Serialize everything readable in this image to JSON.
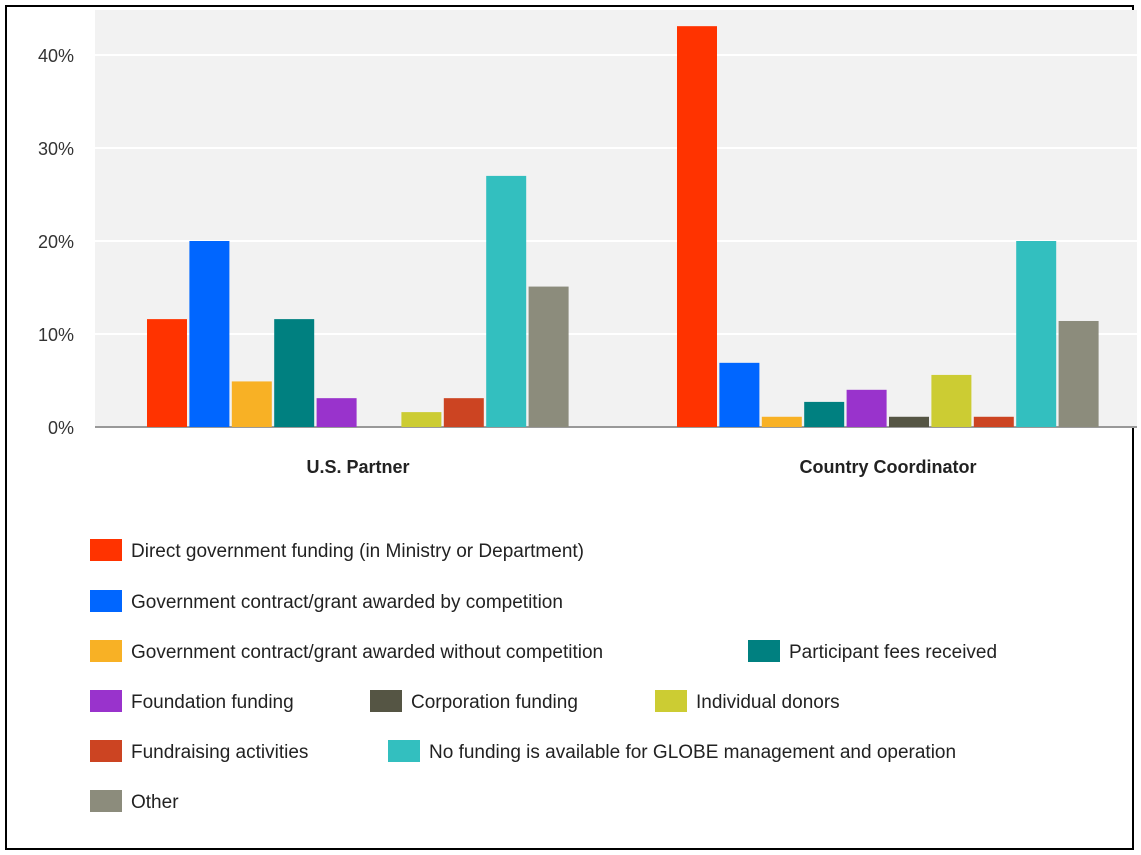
{
  "chart_data": {
    "type": "bar",
    "title": "",
    "xlabel": "",
    "ylabel": "",
    "categories": [
      "U.S. Partner",
      "Country Coordinator"
    ],
    "y_ticks": [
      "0%",
      "10%",
      "20%",
      "30%",
      "40%"
    ],
    "ylim": [
      0,
      45
    ],
    "grid": true,
    "legend_placement": "bottom",
    "series": [
      {
        "name": "Direct government funding (in Ministry or Department)",
        "color": "#ff3300",
        "values": [
          11.6,
          43.1
        ]
      },
      {
        "name": "Government contract/grant awarded by competition",
        "color": "#0066ff",
        "values": [
          20.0,
          6.9
        ]
      },
      {
        "name": "Government contract/grant awarded without competition",
        "color": "#f8b125",
        "values": [
          4.9,
          1.1
        ]
      },
      {
        "name": "Participant fees received",
        "color": "#008080",
        "values": [
          11.6,
          2.7
        ]
      },
      {
        "name": "Foundation funding",
        "color": "#9933cc",
        "values": [
          3.1,
          4.0
        ]
      },
      {
        "name": "Corporation funding",
        "color": "#555544",
        "values": [
          0,
          1.1
        ]
      },
      {
        "name": "Individual donors",
        "color": "#cccc33",
        "values": [
          1.6,
          5.6
        ]
      },
      {
        "name": "Fundraising activities",
        "color": "#cc4422",
        "values": [
          3.1,
          1.1
        ]
      },
      {
        "name": "No funding is available for GLOBE management and operation",
        "color": "#33bfbf",
        "values": [
          27.0,
          20.0
        ]
      },
      {
        "name": "Other",
        "color": "#8c8c7c",
        "values": [
          15.1,
          11.4
        ]
      }
    ]
  }
}
